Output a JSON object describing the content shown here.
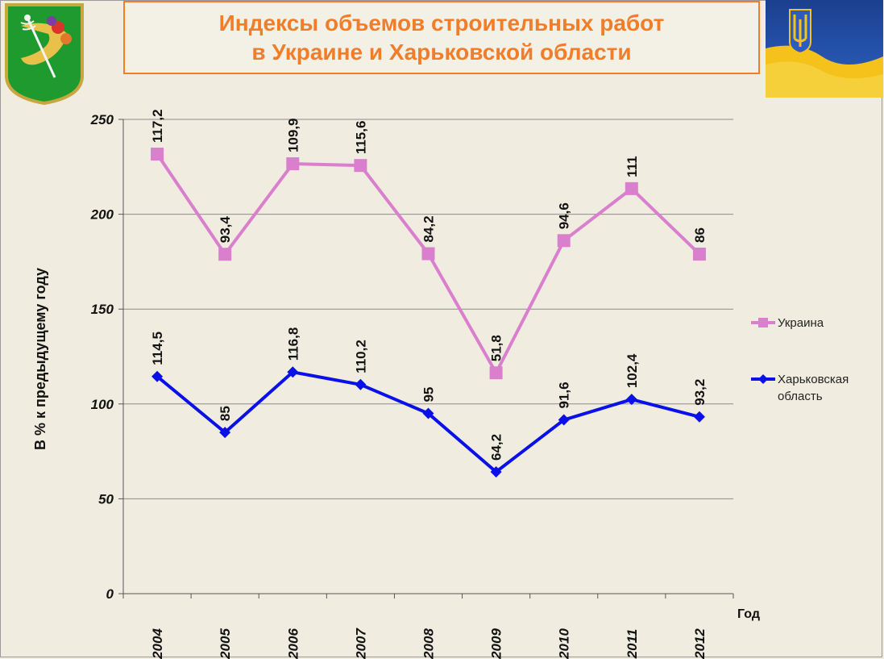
{
  "header": {
    "title_line1": "Индексы объемов строительных работ",
    "title_line2": "в Украине и Харьковской области"
  },
  "logos": {
    "left": "kharkiv-coat-of-arms",
    "right": "ukraine-flag-trident"
  },
  "colors": {
    "title": "#f07d2a",
    "ukraine_series": "#d97fcd",
    "kharkiv_series": "#0a10e8",
    "background": "#f0ede0"
  },
  "chart_data": {
    "type": "line",
    "ylabel": "В % к предыдущему году",
    "xlabel": "Год",
    "ylim": [
      0,
      250
    ],
    "yticks": [
      0,
      50,
      100,
      150,
      200,
      250
    ],
    "grid": true,
    "legend_position": "right",
    "categories": [
      "2004",
      "2005",
      "2006",
      "2007",
      "2008",
      "2009",
      "2010",
      "2011",
      "2012"
    ],
    "series": [
      {
        "name": "Украина",
        "marker": "square",
        "color": "#d97fcd",
        "values": [
          231.7,
          178.9,
          226.6,
          225.7,
          179.2,
          116.4,
          186.1,
          213.5,
          179.0
        ],
        "labels": [
          "117,2",
          "93,4",
          "109,9",
          "115,6",
          "84,2",
          "51,8",
          "94,6",
          "111",
          "86"
        ]
      },
      {
        "name": "Харьковская область",
        "marker": "diamond",
        "color": "#0a10e8",
        "values": [
          114.5,
          85,
          116.8,
          110.2,
          95,
          64.2,
          91.6,
          102.4,
          93.2
        ],
        "labels": [
          "114,5",
          "85",
          "116,8",
          "110,2",
          "95",
          "64,2",
          "91,6",
          "102,4",
          "93,2"
        ]
      }
    ]
  }
}
